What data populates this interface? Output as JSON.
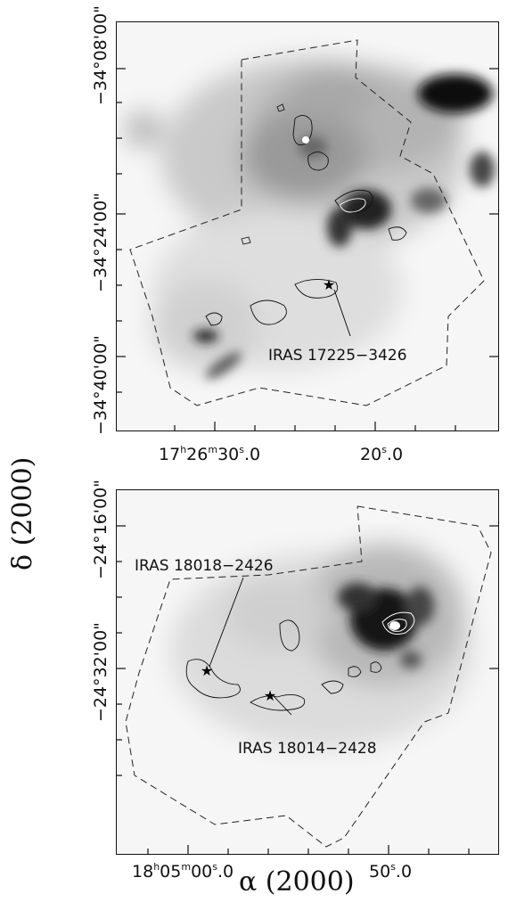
{
  "figure": {
    "y_axis_title": "δ (2000)",
    "x_axis_title": "α (2000)",
    "top_panel": {
      "y_ticks": [
        "−34°08'00\"",
        "−34°24'00\"",
        "−34°40'00\""
      ],
      "x_ticks": [
        {
          "h": "17",
          "hs": "h",
          "m": "26",
          "ms": "m",
          "s": "30",
          "ss": "s",
          "frac": ".0"
        },
        {
          "s": "20",
          "ss": "s",
          "frac": ".0"
        }
      ],
      "source_label": "IRAS 17225−3426"
    },
    "bottom_panel": {
      "y_ticks": [
        "−24°16'00\"",
        "−24°32'00\""
      ],
      "x_ticks": [
        {
          "h": "18",
          "hs": "h",
          "m": "05",
          "ms": "m",
          "s": "00",
          "ss": "s",
          "frac": ".0"
        },
        {
          "s": "50",
          "ss": "s",
          "frac": ".0"
        }
      ],
      "source_labels": [
        "IRAS 18018−2426",
        "IRAS 18014−2428"
      ]
    }
  }
}
